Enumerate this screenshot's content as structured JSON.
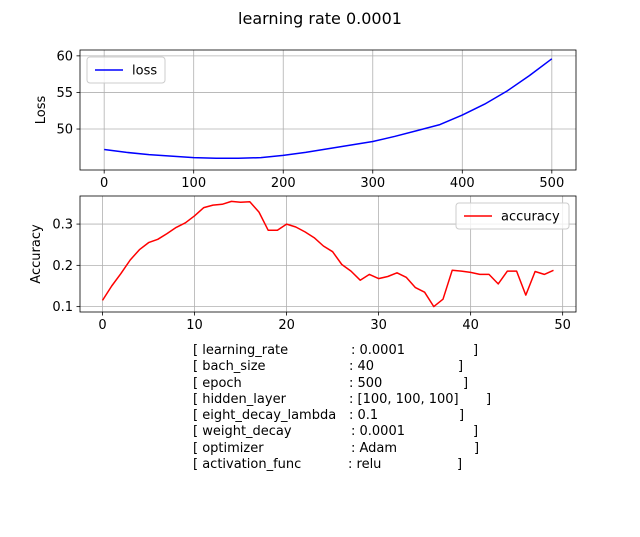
{
  "figure": {
    "suptitle": "learning rate 0.0001"
  },
  "chart_data": [
    {
      "type": "line",
      "ylabel": "Loss",
      "xlabel": "",
      "xlim": [
        -27,
        527
      ],
      "ylim": [
        44.4,
        60.8
      ],
      "xticks": [
        0,
        100,
        200,
        300,
        400,
        500
      ],
      "yticks": [
        50,
        55,
        60
      ],
      "grid": true,
      "legend_placement": "upper-left",
      "series": [
        {
          "name": "loss",
          "color": "#0000ff",
          "x": [
            0,
            25,
            50,
            75,
            100,
            125,
            150,
            175,
            200,
            225,
            250,
            275,
            300,
            325,
            350,
            375,
            400,
            425,
            450,
            475,
            500
          ],
          "y": [
            47.2,
            46.8,
            46.5,
            46.3,
            46.1,
            46.0,
            46.0,
            46.1,
            46.4,
            46.8,
            47.3,
            47.8,
            48.3,
            49.0,
            49.8,
            50.6,
            51.9,
            53.4,
            55.2,
            57.3,
            59.6
          ]
        }
      ]
    },
    {
      "type": "line",
      "ylabel": "Accuracy",
      "xlabel": "",
      "xlim": [
        -2.45,
        51.45
      ],
      "ylim": [
        0.087,
        0.368
      ],
      "xticks": [
        0,
        10,
        20,
        30,
        40,
        50
      ],
      "yticks": [
        0.1,
        0.2,
        0.3
      ],
      "grid": true,
      "legend_placement": "upper-right",
      "series": [
        {
          "name": "accuracy",
          "color": "#ff0000",
          "x": [
            0,
            1,
            2,
            3,
            4,
            5,
            6,
            7,
            8,
            9,
            10,
            11,
            12,
            13,
            14,
            15,
            16,
            17,
            18,
            19,
            20,
            21,
            22,
            23,
            24,
            25,
            26,
            27,
            28,
            29,
            30,
            31,
            32,
            33,
            34,
            35,
            36,
            37,
            38,
            39,
            40,
            41,
            42,
            43,
            44,
            45,
            46,
            47,
            48,
            49
          ],
          "y": [
            0.115,
            0.15,
            0.18,
            0.213,
            0.238,
            0.255,
            0.263,
            0.277,
            0.292,
            0.303,
            0.32,
            0.34,
            0.346,
            0.348,
            0.355,
            0.353,
            0.354,
            0.329,
            0.285,
            0.285,
            0.3,
            0.293,
            0.281,
            0.267,
            0.247,
            0.233,
            0.202,
            0.186,
            0.164,
            0.178,
            0.168,
            0.173,
            0.182,
            0.171,
            0.146,
            0.135,
            0.1,
            0.118,
            0.188,
            0.186,
            0.183,
            0.178,
            0.178,
            0.155,
            0.186,
            0.186,
            0.128,
            0.185,
            0.178,
            0.188
          ]
        }
      ]
    }
  ],
  "params": [
    {
      "name": "[ learning_rate",
      "value": ": 0.0001",
      "close": "]"
    },
    {
      "name": "[ bach_size",
      "value": ": 40",
      "close": "]"
    },
    {
      "name": "[ epoch",
      "value": ": 500",
      "close": "]"
    },
    {
      "name": "[ hidden_layer",
      "value": ": [100, 100, 100]",
      "close": "]"
    },
    {
      "name": "[ eight_decay_lambda",
      "value": ": 0.1",
      "close": "]"
    },
    {
      "name": "[ weight_decay",
      "value": ": 0.0001",
      "close": "]"
    },
    {
      "name": "[ optimizer",
      "value": ": Adam",
      "close": "]"
    },
    {
      "name": "[ activation_func",
      "value": ": relu",
      "close": "]"
    }
  ]
}
